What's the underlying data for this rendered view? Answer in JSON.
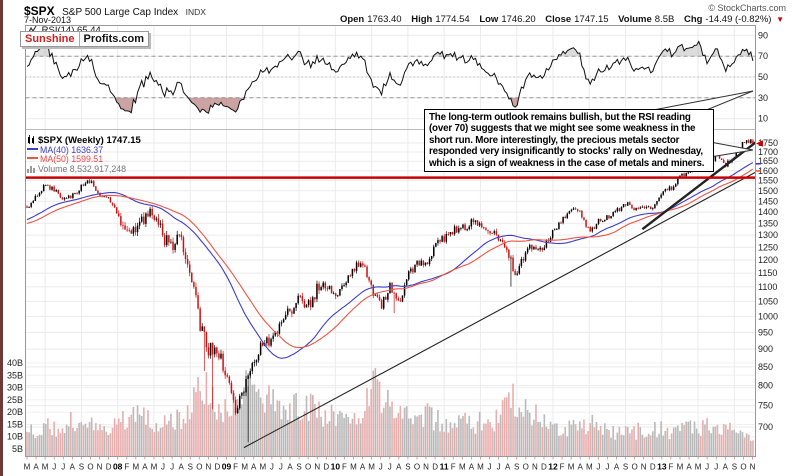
{
  "header": {
    "symbol": "$SPX",
    "name": "S&P 500 Large Cap Index",
    "exchange": "INDX",
    "date": "7-Nov-2013",
    "copyright": "© StockCharts.com",
    "quote": {
      "open_label": "Open",
      "open": "1763.40",
      "high_label": "High",
      "high": "1774.54",
      "low_label": "Low",
      "low": "1746.20",
      "close_label": "Close",
      "close": "1747.15",
      "volume_label": "Volume",
      "volume": "8.5B",
      "chg_label": "Chg",
      "chg": "-14.49 (-0.82%)",
      "chg_arrow": "▼"
    }
  },
  "logo": {
    "part1": "Sunshine",
    "part2": "Profits.com"
  },
  "rsi_label": "RSI(14) 65.44",
  "legend": {
    "main": "$SPX (Weekly) 1747.15",
    "ma40": "MA(40) 1636.37",
    "ma50": "MA(50) 1599.51",
    "volume": "Volume 8,532,917,248"
  },
  "annotation": {
    "text": "The long-term outlook remains bullish, but the RSI reading (over 70) suggests that we might see some weakness in the short run. More interestingly, the precious metals sector responded very insignificantly to stocks' rally on Wednesday, which is a sign of weakness in the case of metals and miners."
  },
  "colors": {
    "up": "#000000",
    "down": "#cc1111",
    "ma40": "#3d3dcc",
    "ma50": "#ee5544",
    "vol_up": "#b9b9b9",
    "vol_down": "#e7aeae",
    "grid": "#ebebeb",
    "grid_vol": "#f0f0f0",
    "frame": "#999999",
    "separator": "#bbbbbb",
    "rsi": "#101010",
    "rsi_band": "#999999",
    "rsi_mid": "#bbbbbb",
    "oversold_fill": "#aa6666",
    "overbought_fill": "#9a9a9a",
    "resistance": "#cc0000",
    "trend": "#222222",
    "axis_text": "#222222",
    "month_tick": "#cc8888",
    "arrow": "#cc0000",
    "logo_red": "#cc2222"
  },
  "chart_data": {
    "type": "candlestick",
    "timeframe": "weekly",
    "title": "$SPX (Weekly)",
    "indicator": "RSI(14)",
    "overlays": [
      "MA(40)",
      "MA(50)",
      "Volume"
    ],
    "x_start_month": "2007-03",
    "x_end_month": "2013-11",
    "price_axis": {
      "scale": "log",
      "ticks": [
        1750,
        1700,
        1650,
        1600,
        1550,
        1500,
        1450,
        1400,
        1350,
        1300,
        1250,
        1200,
        1150,
        1100,
        1050,
        1000,
        950,
        900,
        850,
        800,
        750,
        700
      ]
    },
    "rsi_axis": {
      "ticks": [
        90,
        70,
        50,
        30,
        10
      ],
      "overbought": 70,
      "oversold": 30,
      "mid": 50
    },
    "volume_axis": {
      "tick_values": [
        40,
        35,
        30,
        25,
        20,
        15,
        10,
        5
      ],
      "tick_labels": [
        "40B",
        "35B",
        "30B",
        "25B",
        "20B",
        "15B",
        "10B",
        "5B"
      ]
    },
    "x_labels": [
      "M",
      "A",
      "M",
      "J",
      "J",
      "A",
      "S",
      "O",
      "N",
      "D",
      "08",
      "F",
      "M",
      "A",
      "M",
      "J",
      "J",
      "A",
      "S",
      "O",
      "N",
      "D",
      "09",
      "F",
      "M",
      "A",
      "M",
      "J",
      "J",
      "A",
      "S",
      "O",
      "N",
      "D",
      "10",
      "F",
      "M",
      "A",
      "M",
      "J",
      "J",
      "A",
      "S",
      "O",
      "N",
      "D",
      "11",
      "F",
      "M",
      "A",
      "M",
      "J",
      "J",
      "A",
      "S",
      "O",
      "N",
      "D",
      "12",
      "F",
      "M",
      "A",
      "M",
      "J",
      "J",
      "A",
      "S",
      "O",
      "N",
      "D",
      "13",
      "F",
      "M",
      "A",
      "M",
      "J",
      "J",
      "A",
      "S",
      "O",
      "N"
    ],
    "monthly_closes": {
      "start": "2006-03",
      "prehistory_months": 12,
      "values": [
        1295,
        1311,
        1270,
        1270,
        1277,
        1304,
        1336,
        1378,
        1401,
        1418,
        1438,
        1407,
        1420,
        1482,
        1530,
        1503,
        1455,
        1474,
        1527,
        1549,
        1481,
        1468,
        1378,
        1330,
        1322,
        1385,
        1400,
        1280,
        1267,
        1283,
        1166,
        968,
        896,
        903,
        826,
        735,
        798,
        872,
        919,
        919,
        987,
        1021,
        1057,
        1036,
        1096,
        1115,
        1074,
        1104,
        1169,
        1187,
        1089,
        1031,
        1102,
        1049,
        1141,
        1183,
        1181,
        1258,
        1286,
        1327,
        1326,
        1364,
        1345,
        1321,
        1292,
        1219,
        1131,
        1253,
        1247,
        1258,
        1312,
        1366,
        1408,
        1398,
        1310,
        1362,
        1379,
        1407,
        1441,
        1412,
        1416,
        1426,
        1498,
        1515,
        1569,
        1598,
        1631,
        1606,
        1686,
        1633,
        1682,
        1757,
        1747
      ]
    },
    "monthly_volume_b": {
      "start": "2006-03",
      "values": [
        10,
        10,
        11,
        11,
        10,
        10,
        11,
        11,
        11,
        11,
        12,
        12,
        13,
        13,
        14,
        13,
        15,
        16,
        15,
        15,
        14,
        12,
        16,
        17,
        18,
        17,
        15,
        16,
        17,
        16,
        22,
        33,
        27,
        22,
        22,
        25,
        30,
        28,
        26,
        24,
        22,
        22,
        23,
        22,
        20,
        18,
        19,
        20,
        19,
        22,
        32,
        26,
        22,
        20,
        19,
        18,
        19,
        17,
        16,
        15,
        17,
        15,
        16,
        16,
        17,
        28,
        24,
        22,
        19,
        15,
        14,
        14,
        14,
        14,
        16,
        14,
        12,
        11,
        12,
        12,
        13,
        13,
        13,
        12,
        13,
        13,
        13,
        14,
        12,
        12,
        13,
        13,
        8.5
      ]
    },
    "extreme_lows": [
      {
        "month": "2008-10",
        "low": 839
      },
      {
        "month": "2008-11",
        "low": 741
      },
      {
        "month": "2009-03",
        "low": 666
      },
      {
        "month": "2010-07",
        "low": 1011
      },
      {
        "month": "2011-08",
        "low": 1101
      }
    ],
    "last_week": {
      "open": 1763.4,
      "high": 1774.54,
      "low": 1746.2,
      "close": 1747.15,
      "volume_b": 8.5,
      "rsi": 65.44,
      "ma40": 1636.37,
      "ma50": 1599.51
    },
    "annotations": {
      "resistance_line": {
        "type": "hline",
        "price": 1565,
        "width": 2.5
      },
      "trendlines": [
        {
          "w1": 104,
          "p1": 655,
          "w2": 354,
          "p2": 1620,
          "width": 1.1
        },
        {
          "w1": 295,
          "p1": 1325,
          "w2": 356,
          "p2": 1815,
          "width": 2.4
        }
      ]
    }
  }
}
